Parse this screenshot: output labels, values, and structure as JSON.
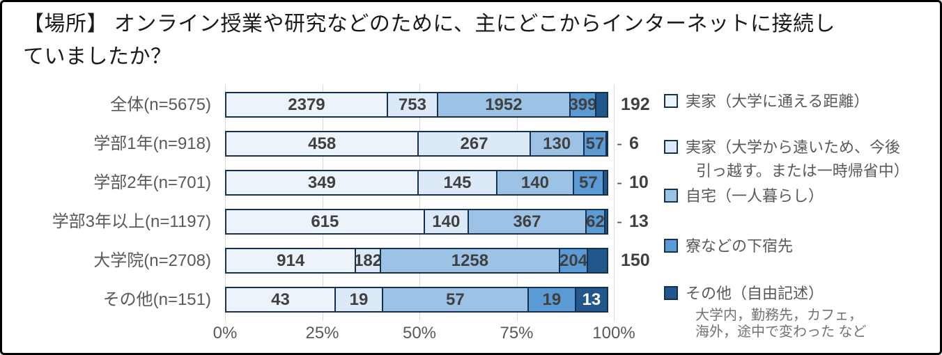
{
  "page": {
    "title_lines": [
      "【場所】 オンライン授業や研究などのために、主にどこからインターネットに接続し",
      "ていましたか？"
    ]
  },
  "chart_data": {
    "type": "bar",
    "stacked": true,
    "orientation": "horizontal",
    "percent_axis": true,
    "categories": [
      "全体(n=5675)",
      "学部1年(n=918)",
      "学部2年(n=701)",
      "学部3年以上(n=1197)",
      "大学院(n=2708)",
      "その他(n=151)"
    ],
    "totals": [
      5675,
      918,
      701,
      1197,
      2708,
      151
    ],
    "series": [
      {
        "name": "実家（大学に通える距離）",
        "color": "#ecf3fa",
        "values": [
          2379,
          458,
          349,
          615,
          914,
          43
        ]
      },
      {
        "name": "実家（大学から遠いため、今後引っ越す。または一時帰省中）",
        "color": "#dce9f6",
        "values": [
          753,
          267,
          145,
          140,
          182,
          19
        ]
      },
      {
        "name": "自宅（一人暮らし）",
        "color": "#9cc3e6",
        "values": [
          1952,
          130,
          140,
          367,
          1258,
          57
        ]
      },
      {
        "name": "寮などの下宿先",
        "color": "#5b9bd5",
        "values": [
          399,
          57,
          57,
          62,
          204,
          19
        ]
      },
      {
        "name": "その他（自由記述）",
        "color": "#21578a",
        "values": [
          192,
          6,
          10,
          13,
          150,
          13
        ]
      }
    ],
    "last_label_placement": [
      "outside",
      "outside_leader",
      "outside_leader",
      "outside_leader",
      "outside",
      "inside"
    ],
    "leader_glyph": "-",
    "xticks": [
      "0%",
      "25%",
      "50%",
      "75%",
      "100%"
    ],
    "xlim": [
      0,
      100
    ],
    "gridlines": true,
    "legend_position": "right"
  },
  "legend": {
    "items": [
      {
        "lines": [
          "実家（大学に通える距離）"
        ],
        "color": "#ecf3fa"
      },
      {
        "lines": [
          "実家（大学から遠いため、今後",
          "引っ越す。または一時帰省中）"
        ],
        "color": "#dce9f6"
      },
      {
        "lines": [
          "自宅（一人暮らし）"
        ],
        "color": "#9cc3e6"
      },
      {
        "lines": [
          "寮などの下宿先"
        ],
        "color": "#5b9bd5"
      },
      {
        "lines": [
          "その他（自由記述）"
        ],
        "color": "#21578a"
      }
    ],
    "note_lines": [
      "大学内，勤務先，カフェ，",
      "海外，途中で変わった など"
    ]
  },
  "colors": {
    "segment_border": "#15314f",
    "gridline": "#d9d9d9",
    "value_label": "#404040",
    "value_label_on_dark": "#ffffff",
    "axis_label": "#595959",
    "category_label": "#595959",
    "legend_text": "#595959",
    "title_text": "#1a1a1a",
    "frame_border": "#000000"
  }
}
